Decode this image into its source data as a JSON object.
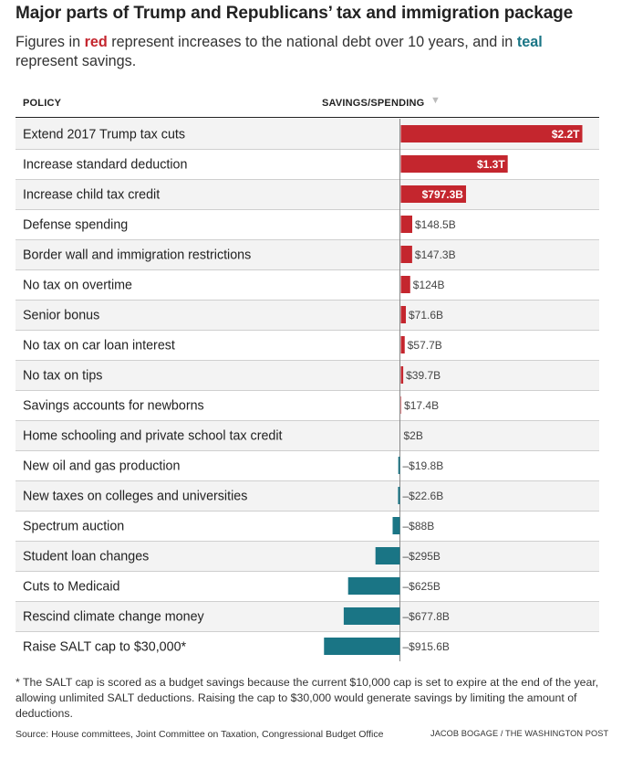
{
  "title": "Major parts of Trump and Republicans’ tax and immigration package",
  "subtitle": {
    "part1": "Figures in ",
    "red_word": "red",
    "part2": " represent increases to the national debt over 10 years, and in ",
    "teal_word": "teal",
    "part3": " represent savings."
  },
  "colors": {
    "increase": "#c4262e",
    "savings": "#1a7585",
    "stripe": "#f3f3f3"
  },
  "chart_data": {
    "type": "bar",
    "orientation": "horizontal",
    "title": "Major parts of Trump and Republicans’ tax and immigration package",
    "columns": {
      "category": "POLICY",
      "value": "SAVINGS/SPENDING"
    },
    "sort_indicator": "▼",
    "unit": "billions of dollars over 10 years",
    "categories": [
      "Extend 2017 Trump tax cuts",
      "Increase standard deduction",
      "Increase child tax credit",
      "Defense spending",
      "Border wall and immigration restrictions",
      "No tax on overtime",
      "Senior bonus",
      "No tax on car loan interest",
      "No tax on tips",
      "Savings accounts for newborns",
      "Home schooling and private school tax credit",
      "New oil and gas production",
      "New taxes on colleges and universities",
      "Spectrum auction",
      "Student loan changes",
      "Cuts to Medicaid",
      "Rescind climate change money",
      "Raise SALT cap to $30,000*"
    ],
    "values": [
      2200,
      1300,
      797.3,
      148.5,
      147.3,
      124,
      71.6,
      57.7,
      39.7,
      17.4,
      2,
      -19.8,
      -22.6,
      -88,
      -295,
      -625,
      -677.8,
      -915.6
    ],
    "labels": [
      "$2.2T",
      "$1.3T",
      "$797.3B",
      "$148.5B",
      "$147.3B",
      "$124B",
      "$71.6B",
      "$57.7B",
      "$39.7B",
      "$17.4B",
      "$2B",
      "–$19.8B",
      "–$22.6B",
      "–$88B",
      "–$295B",
      "–$625B",
      "–$677.8B",
      "–$915.6B"
    ]
  },
  "footnote": "* The SALT cap is scored as a budget savings because the current $10,000 cap is set to expire at the end of the year, allowing unlimited SALT deductions. Raising the cap to $30,000 would generate savings by limiting the amount of deductions.",
  "source": "Source: House committees, Joint Committee on Taxation, Congressional Budget Office",
  "credit": "JACOB BOGAGE / THE WASHINGTON POST"
}
